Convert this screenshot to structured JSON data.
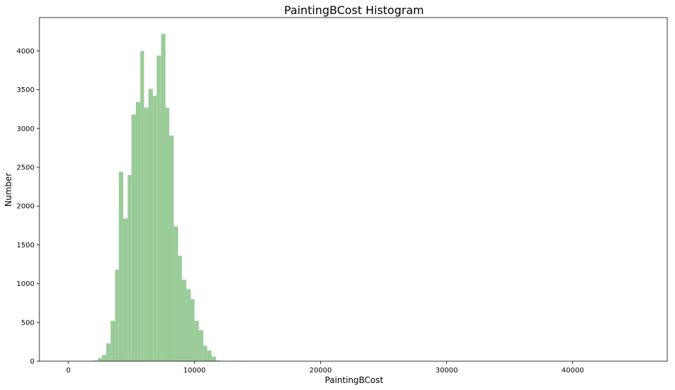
{
  "chart_data": {
    "type": "bar",
    "title": "PaintingBCost Histogram",
    "xlabel": "PaintingBCost",
    "ylabel": "Number",
    "xlim": [
      -2300,
      47500
    ],
    "ylim": [
      0,
      4430
    ],
    "xticks": [
      0,
      10000,
      20000,
      30000,
      40000
    ],
    "yticks": [
      0,
      500,
      1000,
      1500,
      2000,
      2500,
      3000,
      3500,
      4000
    ],
    "grid": false,
    "series": [
      {
        "color": "#9acc99",
        "bins": [
          {
            "x0": 1700,
            "x1": 2000,
            "count": 5
          },
          {
            "x0": 2000,
            "x1": 2350,
            "count": 10
          },
          {
            "x0": 2350,
            "x1": 2650,
            "count": 40
          },
          {
            "x0": 2650,
            "x1": 3000,
            "count": 80
          },
          {
            "x0": 3000,
            "x1": 3350,
            "count": 230
          },
          {
            "x0": 3350,
            "x1": 3700,
            "count": 520
          },
          {
            "x0": 3700,
            "x1": 4000,
            "count": 1180
          },
          {
            "x0": 4000,
            "x1": 4350,
            "count": 2440
          },
          {
            "x0": 4350,
            "x1": 4700,
            "count": 1840
          },
          {
            "x0": 4700,
            "x1": 5000,
            "count": 2400
          },
          {
            "x0": 5000,
            "x1": 5350,
            "count": 3180
          },
          {
            "x0": 5350,
            "x1": 5700,
            "count": 3340
          },
          {
            "x0": 5700,
            "x1": 6000,
            "count": 4000
          },
          {
            "x0": 6000,
            "x1": 6350,
            "count": 3270
          },
          {
            "x0": 6350,
            "x1": 6700,
            "count": 3510
          },
          {
            "x0": 6700,
            "x1": 7000,
            "count": 3420
          },
          {
            "x0": 7000,
            "x1": 7350,
            "count": 3940
          },
          {
            "x0": 7350,
            "x1": 7700,
            "count": 4220
          },
          {
            "x0": 7700,
            "x1": 8000,
            "count": 3270
          },
          {
            "x0": 8000,
            "x1": 8350,
            "count": 2910
          },
          {
            "x0": 8350,
            "x1": 8700,
            "count": 1740
          },
          {
            "x0": 8700,
            "x1": 9000,
            "count": 1360
          },
          {
            "x0": 9000,
            "x1": 9350,
            "count": 1050
          },
          {
            "x0": 9350,
            "x1": 9700,
            "count": 930
          },
          {
            "x0": 9700,
            "x1": 10000,
            "count": 800
          },
          {
            "x0": 10000,
            "x1": 10350,
            "count": 520
          },
          {
            "x0": 10350,
            "x1": 10700,
            "count": 400
          },
          {
            "x0": 10700,
            "x1": 11000,
            "count": 200
          },
          {
            "x0": 11000,
            "x1": 11350,
            "count": 140
          },
          {
            "x0": 11350,
            "x1": 11700,
            "count": 60
          },
          {
            "x0": 11700,
            "x1": 12000,
            "count": 10
          },
          {
            "x0": 12000,
            "x1": 12350,
            "count": 3
          },
          {
            "x0": 13000,
            "x1": 13700,
            "count": 5
          }
        ]
      }
    ]
  }
}
